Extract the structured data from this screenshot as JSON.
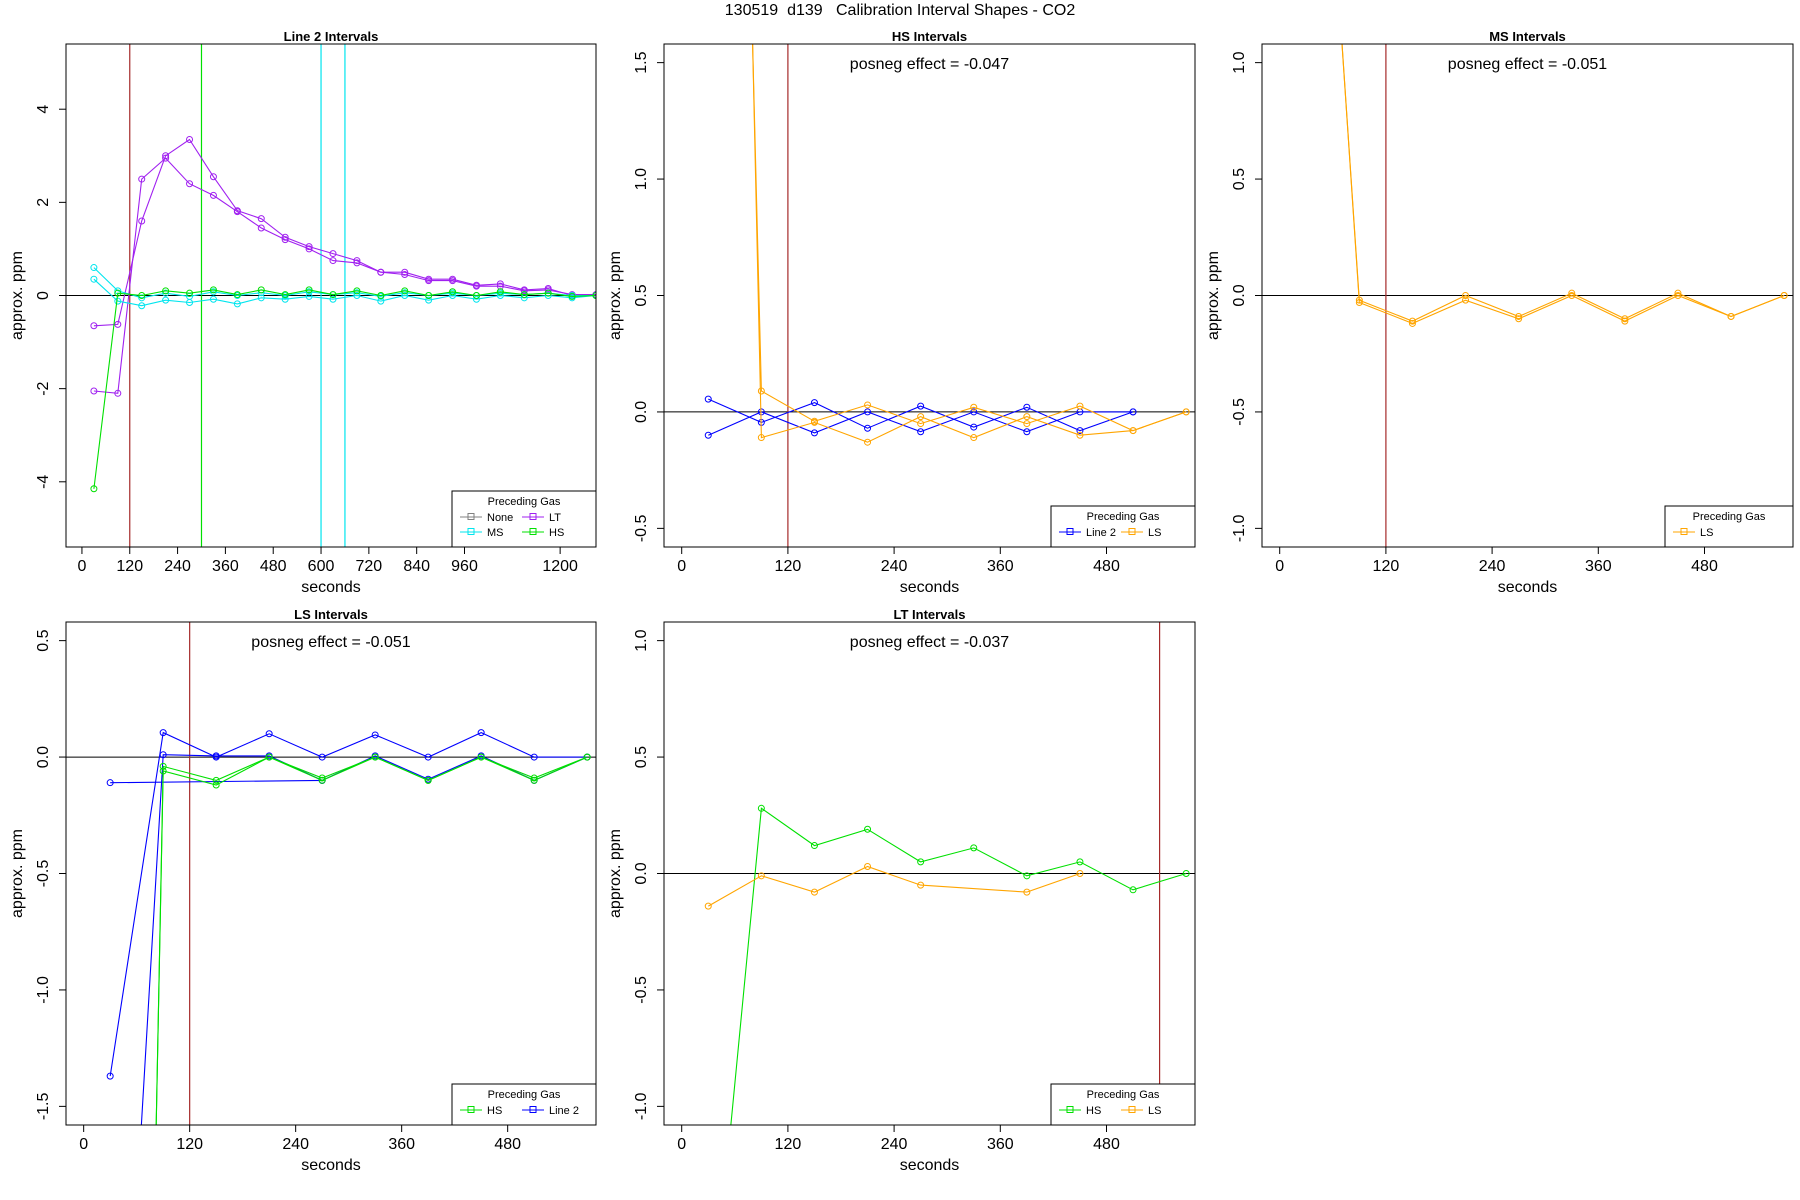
{
  "figure": {
    "title": "130519  d139   Calibration Interval Shapes - CO2"
  },
  "chart_data": [
    {
      "id": "line2",
      "type": "line",
      "title": "Line 2 Intervals",
      "xlabel": "seconds",
      "ylabel": "approx. ppm",
      "xlim": [
        -40,
        1290
      ],
      "ylim": [
        -5.4,
        5.4
      ],
      "xticks": [
        0,
        120,
        240,
        360,
        480,
        600,
        720,
        840,
        960,
        1200
      ],
      "yticks": [
        -4,
        -2,
        0,
        2,
        4
      ],
      "hline": 0,
      "vlines": [
        {
          "x": 120,
          "color": "#a52a2a"
        },
        {
          "x": 300,
          "color": "#00e000"
        },
        {
          "x": 600,
          "color": "#00e5ee"
        },
        {
          "x": 660,
          "color": "#00e5ee"
        }
      ],
      "legend": {
        "title": "Preceding Gas",
        "position": "bottom-right",
        "entries": [
          {
            "label": "None",
            "color": "#808080"
          },
          {
            "label": "LT",
            "color": "#a020f0"
          },
          {
            "label": "MS",
            "color": "#00e5ee"
          },
          {
            "label": "HS",
            "color": "#00e000"
          }
        ]
      },
      "series": [
        {
          "color": "#a020f0",
          "x": [
            30,
            90,
            150,
            210,
            270,
            330,
            390,
            450,
            510,
            570,
            630,
            690,
            750,
            810,
            870,
            930,
            990,
            1050,
            1110,
            1170,
            1230,
            1290
          ],
          "y": [
            -0.65,
            -0.62,
            1.6,
            3.0,
            3.35,
            2.55,
            1.82,
            1.65,
            1.25,
            1.05,
            0.9,
            0.75,
            0.5,
            0.5,
            0.35,
            0.35,
            0.22,
            0.25,
            0.12,
            0.15,
            0.0,
            0.02
          ]
        },
        {
          "color": "#a020f0",
          "x": [
            30,
            90,
            150,
            210,
            270,
            330,
            390,
            450,
            510,
            570,
            630,
            690,
            750,
            810,
            870,
            930,
            990,
            1050,
            1110,
            1170,
            1230,
            1290
          ],
          "y": [
            -2.05,
            -2.1,
            2.5,
            2.95,
            2.4,
            2.15,
            1.8,
            1.45,
            1.2,
            1.0,
            0.75,
            0.7,
            0.5,
            0.45,
            0.32,
            0.32,
            0.2,
            0.2,
            0.1,
            0.12,
            0.02,
            0.02
          ]
        },
        {
          "color": "#00e5ee",
          "x": [
            30,
            90,
            150,
            210,
            270,
            330,
            390,
            450,
            510,
            570,
            630,
            690,
            750,
            810,
            870,
            930,
            990,
            1050,
            1110,
            1170,
            1230,
            1290
          ],
          "y": [
            0.6,
            0.1,
            -0.05,
            0.05,
            -0.02,
            0.08,
            0.0,
            0.06,
            0.0,
            0.08,
            0.02,
            0.06,
            -0.02,
            0.06,
            0.0,
            0.05,
            0.0,
            0.05,
            0.02,
            0.05,
            0.0,
            0.0
          ]
        },
        {
          "color": "#00e5ee",
          "x": [
            30,
            90,
            150,
            210,
            270,
            330,
            390,
            450,
            510,
            570,
            630,
            690,
            750,
            810,
            870,
            930,
            990,
            1050,
            1110,
            1170,
            1230,
            1290
          ],
          "y": [
            0.35,
            -0.12,
            -0.22,
            -0.1,
            -0.15,
            -0.08,
            -0.18,
            -0.05,
            -0.08,
            -0.02,
            -0.08,
            0.0,
            -0.12,
            0.0,
            -0.1,
            0.0,
            -0.08,
            0.0,
            -0.05,
            0.0,
            -0.05,
            0.0
          ]
        },
        {
          "color": "#00e000",
          "x": [
            30,
            90,
            150,
            210,
            270,
            330,
            390,
            450,
            510,
            570,
            630,
            690,
            750,
            810,
            870,
            930,
            990,
            1050,
            1110,
            1170,
            1230,
            1290
          ],
          "y": [
            -4.15,
            0.05,
            0.0,
            0.1,
            0.05,
            0.12,
            0.02,
            0.12,
            0.02,
            0.12,
            0.02,
            0.1,
            0.0,
            0.1,
            0.0,
            0.08,
            0.0,
            0.08,
            0.02,
            0.05,
            -0.02,
            0.0
          ]
        }
      ]
    },
    {
      "id": "hs",
      "type": "line",
      "title": "HS Intervals",
      "xlabel": "seconds",
      "ylabel": "approx. ppm",
      "xlim": [
        -20,
        580
      ],
      "ylim": [
        -0.58,
        1.58
      ],
      "xticks": [
        0,
        120,
        240,
        360,
        480
      ],
      "yticks": [
        -0.5,
        0.0,
        0.5,
        1.0,
        1.5
      ],
      "annotation": "posneg effect = -0.047",
      "hline": 0,
      "vlines": [
        {
          "x": 120,
          "color": "#a52a2a"
        }
      ],
      "legend": {
        "title": "Preceding Gas",
        "position": "bottom-right",
        "entries": [
          {
            "label": "Line 2",
            "color": "#0000ff"
          },
          {
            "label": "LS",
            "color": "#ffa500"
          }
        ]
      },
      "series": [
        {
          "color": "#0000ff",
          "x": [
            30,
            90,
            150,
            210,
            270,
            330,
            390,
            450,
            510
          ],
          "y": [
            0.055,
            -0.045,
            0.04,
            -0.07,
            0.025,
            -0.065,
            0.02,
            -0.08,
            0.0
          ]
        },
        {
          "color": "#0000ff",
          "x": [
            30,
            90,
            150,
            210,
            270,
            330,
            390,
            450,
            510
          ],
          "y": [
            -0.1,
            0.0,
            -0.09,
            0.0,
            -0.085,
            0.0,
            -0.085,
            0.0,
            0.0
          ]
        },
        {
          "color": "#ffa500",
          "x": [
            80,
            90,
            150,
            210,
            270,
            330,
            390,
            450,
            510,
            570
          ],
          "y": [
            1.6,
            -0.11,
            -0.045,
            -0.13,
            -0.02,
            -0.11,
            -0.02,
            -0.1,
            -0.08,
            0.0
          ]
        },
        {
          "color": "#ffa500",
          "x": [
            80,
            90,
            150,
            210,
            270,
            330,
            390,
            450,
            510,
            570
          ],
          "y": [
            1.6,
            0.09,
            -0.04,
            0.03,
            -0.05,
            0.02,
            -0.05,
            0.025,
            -0.08,
            0.0
          ]
        }
      ]
    },
    {
      "id": "ms",
      "type": "line",
      "title": "MS Intervals",
      "xlabel": "seconds",
      "ylabel": "approx. ppm",
      "xlim": [
        -20,
        580
      ],
      "ylim": [
        -1.08,
        1.08
      ],
      "xticks": [
        0,
        120,
        240,
        360,
        480
      ],
      "yticks": [
        -1.0,
        -0.5,
        0.0,
        0.5,
        1.0
      ],
      "annotation": "posneg effect = -0.051",
      "hline": 0,
      "vlines": [
        {
          "x": 120,
          "color": "#a52a2a"
        }
      ],
      "legend": {
        "title": "Preceding Gas",
        "position": "bottom-right",
        "entries": [
          {
            "label": "LS",
            "color": "#ffa500"
          }
        ]
      },
      "series": [
        {
          "color": "#ffa500",
          "x": [
            70,
            90,
            150,
            210,
            270,
            330,
            390,
            450,
            510,
            570
          ],
          "y": [
            1.1,
            -0.02,
            -0.11,
            0.0,
            -0.09,
            0.01,
            -0.1,
            0.01,
            -0.09,
            0.0
          ]
        },
        {
          "color": "#ffa500",
          "x": [
            70,
            90,
            150,
            210,
            270,
            330,
            390,
            450,
            510,
            570
          ],
          "y": [
            1.1,
            -0.03,
            -0.12,
            -0.02,
            -0.1,
            0.0,
            -0.11,
            0.0,
            -0.09,
            0.0
          ]
        }
      ]
    },
    {
      "id": "ls",
      "type": "line",
      "title": "LS Intervals",
      "xlabel": "seconds",
      "ylabel": "approx. ppm",
      "xlim": [
        -20,
        580
      ],
      "ylim": [
        -1.58,
        0.58
      ],
      "xticks": [
        0,
        120,
        240,
        360,
        480
      ],
      "yticks": [
        -1.5,
        -1.0,
        -0.5,
        0.0,
        0.5
      ],
      "annotation": "posneg effect = -0.051",
      "hline": 0,
      "vlines": [
        {
          "x": 120,
          "color": "#a52a2a"
        }
      ],
      "legend": {
        "title": "Preceding Gas",
        "position": "bottom-right",
        "entries": [
          {
            "label": "HS",
            "color": "#00e000"
          },
          {
            "label": "Line 2",
            "color": "#0000ff"
          }
        ]
      },
      "series": [
        {
          "color": "#0000ff",
          "x": [
            30,
            90,
            150,
            210,
            270,
            330,
            390,
            450,
            510,
            570
          ],
          "y": [
            -1.37,
            0.105,
            0.0,
            0.1,
            0.0,
            0.095,
            0.0,
            0.105,
            0.0,
            0.0
          ]
        },
        {
          "color": "#0000ff",
          "x": [
            65,
            90,
            150,
            210,
            270,
            330,
            390,
            450,
            510,
            570
          ],
          "y": [
            -1.6,
            0.01,
            0.005,
            0.005,
            -0.1,
            0.005,
            -0.095,
            0.005,
            -0.1,
            0.0
          ]
        },
        {
          "color": "#0000ff",
          "x": [
            30,
            270
          ],
          "y": [
            -0.11,
            -0.1
          ]
        },
        {
          "color": "#00e000",
          "x": [
            82,
            90,
            150,
            210,
            270,
            330,
            390,
            450,
            510,
            570
          ],
          "y": [
            -1.6,
            -0.04,
            -0.1,
            0.0,
            -0.09,
            0.0,
            -0.1,
            0.0,
            -0.09,
            0.0
          ]
        },
        {
          "color": "#00e000",
          "x": [
            82,
            90,
            150,
            210,
            270,
            330,
            390,
            450,
            510,
            570
          ],
          "y": [
            -1.6,
            -0.06,
            -0.12,
            0.0,
            -0.1,
            0.0,
            -0.1,
            0.0,
            -0.1,
            0.0
          ]
        }
      ]
    },
    {
      "id": "lt",
      "type": "line",
      "title": "LT Intervals",
      "xlabel": "seconds",
      "ylabel": "approx. ppm",
      "xlim": [
        -20,
        580
      ],
      "ylim": [
        -1.08,
        1.08
      ],
      "xticks": [
        0,
        120,
        240,
        360,
        480
      ],
      "yticks": [
        -1.0,
        -0.5,
        0.0,
        0.5,
        1.0
      ],
      "annotation": "posneg effect = -0.037",
      "hline": 0,
      "vlines": [
        {
          "x": 540,
          "color": "#a52a2a"
        }
      ],
      "legend": {
        "title": "Preceding Gas",
        "position": "bottom-right",
        "entries": [
          {
            "label": "HS",
            "color": "#00e000"
          },
          {
            "label": "LS",
            "color": "#ffa500"
          }
        ]
      },
      "series": [
        {
          "color": "#00e000",
          "x": [
            55,
            90,
            150,
            210,
            270,
            330,
            390,
            450,
            510,
            570
          ],
          "y": [
            -1.1,
            0.28,
            0.12,
            0.19,
            0.05,
            0.11,
            -0.01,
            0.05,
            -0.07,
            0.0
          ]
        },
        {
          "color": "#ffa500",
          "x": [
            30,
            90,
            150,
            210,
            270,
            390,
            450
          ],
          "y": [
            -0.14,
            -0.01,
            -0.08,
            0.03,
            -0.05,
            -0.08,
            0.0
          ]
        }
      ]
    }
  ]
}
